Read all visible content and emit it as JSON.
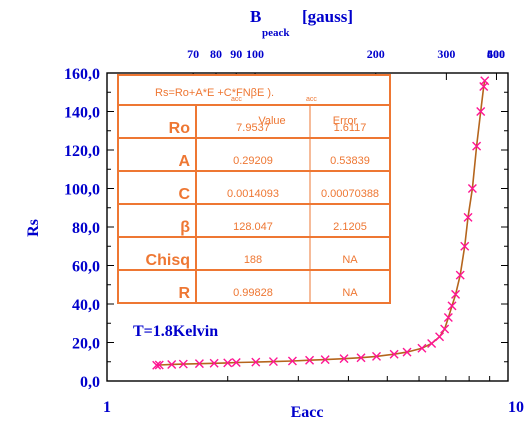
{
  "chart_data": {
    "type": "scatter",
    "xlabel": "Eacc",
    "ylabel": "Rs",
    "top_axis": {
      "label_main": "B",
      "label_sub": "peack",
      "label_unit": "[gauss]",
      "ticks": [
        {
          "label": "70",
          "eacc": 1.64
        },
        {
          "label": "80",
          "eacc": 1.87
        },
        {
          "label": "90",
          "eacc": 2.1
        },
        {
          "label": "100",
          "eacc": 2.34
        },
        {
          "label": "200",
          "eacc": 4.68
        },
        {
          "label": "300",
          "eacc": 7.02
        },
        {
          "label": "400",
          "eacc": 9.36
        },
        {
          "label": "500",
          "eacc": 11.7
        },
        {
          "label": "600",
          "eacc": 14.04
        }
      ]
    },
    "x_scale": "log",
    "xlim": [
      1,
      10
    ],
    "ylim": [
      0,
      160
    ],
    "x_tick_labels": [
      "1",
      "10"
    ],
    "y_ticks": [
      0,
      20,
      40,
      60,
      80,
      100,
      120,
      140,
      160
    ],
    "y_tick_labels": [
      "0,0",
      "20,0",
      "40,0",
      "60,0",
      "80,0",
      "100,0",
      "120,0",
      "140,0",
      "160,0"
    ],
    "annotation": "T=1.8Kelvin",
    "fit_params": {
      "Ro": 7.9537,
      "A": 0.29209,
      "C": 0.0014093,
      "beta": 128.047
    },
    "points": [
      {
        "x": 1.33,
        "y": 8.2
      },
      {
        "x": 1.35,
        "y": 8.3
      },
      {
        "x": 1.45,
        "y": 8.6
      },
      {
        "x": 1.55,
        "y": 8.8
      },
      {
        "x": 1.7,
        "y": 9.0
      },
      {
        "x": 1.85,
        "y": 9.2
      },
      {
        "x": 2.0,
        "y": 9.4
      },
      {
        "x": 2.1,
        "y": 9.6
      },
      {
        "x": 2.35,
        "y": 9.8
      },
      {
        "x": 2.6,
        "y": 10.1
      },
      {
        "x": 2.9,
        "y": 10.4
      },
      {
        "x": 3.2,
        "y": 10.8
      },
      {
        "x": 3.5,
        "y": 11.1
      },
      {
        "x": 3.9,
        "y": 11.6
      },
      {
        "x": 4.3,
        "y": 12.1
      },
      {
        "x": 4.7,
        "y": 12.8
      },
      {
        "x": 5.2,
        "y": 13.9
      },
      {
        "x": 5.6,
        "y": 15.0
      },
      {
        "x": 6.1,
        "y": 17.0
      },
      {
        "x": 6.45,
        "y": 19.5
      },
      {
        "x": 6.75,
        "y": 23.0
      },
      {
        "x": 6.95,
        "y": 27.0
      },
      {
        "x": 7.1,
        "y": 33.0
      },
      {
        "x": 7.25,
        "y": 39.0
      },
      {
        "x": 7.4,
        "y": 45.0
      },
      {
        "x": 7.6,
        "y": 55.0
      },
      {
        "x": 7.8,
        "y": 70.0
      },
      {
        "x": 7.95,
        "y": 85.0
      },
      {
        "x": 8.15,
        "y": 100.0
      },
      {
        "x": 8.35,
        "y": 122.0
      },
      {
        "x": 8.55,
        "y": 140.0
      },
      {
        "x": 8.7,
        "y": 153.0
      },
      {
        "x": 8.75,
        "y": 156.0
      }
    ],
    "marker": "x",
    "marker_color": "#ff1493",
    "line_color": "#b5651d",
    "axis_label_color": "#0000cc"
  },
  "fit_table": {
    "formula": "Rs=Ro+A*E  +C*FNβE   ).",
    "formula_sub1": "acc",
    "formula_sub2": "acc",
    "col_value": "Value",
    "col_error": "Error",
    "rows": [
      {
        "name": "Ro",
        "value": "7.9537",
        "error": "1.6117"
      },
      {
        "name": "A",
        "value": "0.29209",
        "error": "0.53839"
      },
      {
        "name": "C",
        "value": "0.0014093",
        "error": "0.00070388"
      },
      {
        "name": "β",
        "value": "128.047",
        "error": "2.1205"
      },
      {
        "name": "Chisq",
        "value": "188",
        "error": "NA"
      },
      {
        "name": "R",
        "value": "0.99828",
        "error": "NA"
      }
    ],
    "border_color": "#ee7733"
  }
}
